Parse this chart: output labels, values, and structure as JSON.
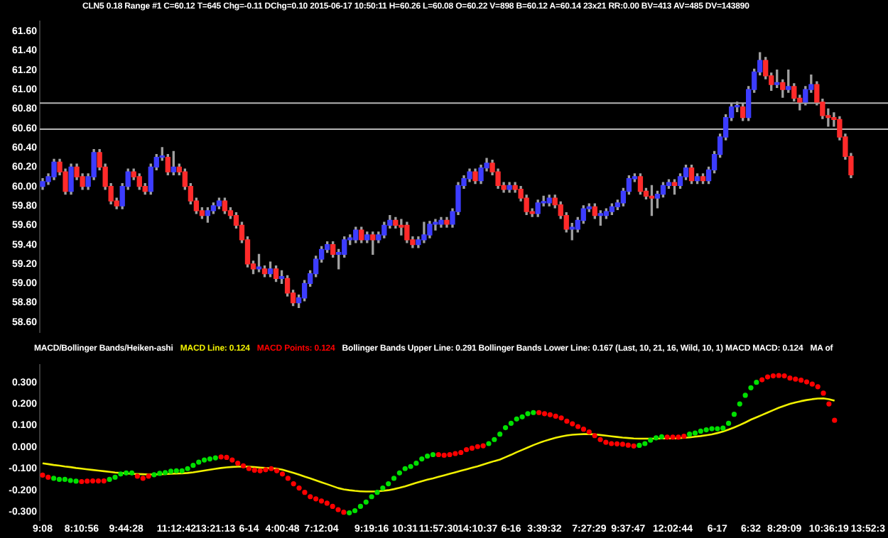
{
  "chart_data": [
    {
      "type": "candlestick",
      "title": "CLN5  0.18 Range  #1  C=60.12  T=645  Chg=-0.11  DChg=0.10  2015-06-17 10:50:11 H=60.26 L=60.08 O=60.22 V=898 B=60.12 A=60.14 23x21 RR:0.00 BV=413 AV=485 DV=143890",
      "categories": [
        null,
        null,
        null,
        null,
        null,
        null,
        null,
        null,
        null,
        null,
        null,
        null,
        null,
        null,
        null,
        null,
        null,
        null,
        null,
        null,
        null,
        null,
        null,
        null,
        null,
        null,
        null,
        null,
        null,
        null,
        null,
        null,
        null,
        null,
        null,
        null,
        null,
        null,
        null,
        null,
        null,
        null,
        null,
        null,
        null,
        null,
        null,
        null,
        null,
        null,
        null,
        null,
        null,
        null,
        null,
        null,
        null,
        null,
        null,
        null,
        null,
        null,
        null,
        null,
        null,
        null,
        null,
        null,
        null,
        null,
        null,
        null,
        null,
        null,
        null,
        null,
        null,
        null,
        null,
        null,
        null,
        null,
        null,
        null,
        null,
        null,
        null,
        null,
        null,
        null,
        null,
        null,
        null,
        null,
        null,
        null,
        null,
        null,
        null,
        null,
        null,
        null,
        null,
        null,
        null,
        null,
        null,
        null,
        null,
        null,
        null,
        null,
        null,
        null,
        null,
        null,
        null,
        null,
        null,
        null,
        null,
        null,
        null,
        null,
        null,
        null,
        null,
        null,
        null,
        null,
        null,
        null,
        null,
        null,
        null,
        null,
        null,
        null,
        null,
        null,
        null,
        null,
        null,
        null,
        null,
        null,
        null,
        null,
        null
      ],
      "ohlc": [
        [
          60.0,
          60.08,
          59.97,
          60.05
        ],
        [
          60.05,
          60.13,
          60.02,
          60.1
        ],
        [
          60.1,
          60.28,
          60.07,
          60.25
        ],
        [
          60.25,
          60.28,
          60.12,
          60.15
        ],
        [
          60.15,
          60.18,
          59.92,
          59.95
        ],
        [
          59.95,
          60.23,
          59.92,
          60.2
        ],
        [
          60.2,
          60.23,
          60.07,
          60.1
        ],
        [
          60.1,
          60.13,
          59.97,
          60.0
        ],
        [
          60.0,
          60.13,
          59.97,
          60.1
        ],
        [
          60.1,
          60.38,
          60.07,
          60.35
        ],
        [
          60.35,
          60.38,
          60.17,
          60.2
        ],
        [
          60.2,
          60.23,
          59.97,
          60.0
        ],
        [
          60.0,
          60.03,
          59.82,
          59.85
        ],
        [
          59.85,
          59.88,
          59.77,
          59.8
        ],
        [
          59.8,
          60.03,
          59.77,
          60.0
        ],
        [
          60.0,
          60.18,
          59.97,
          60.15
        ],
        [
          60.15,
          60.18,
          60.07,
          60.1
        ],
        [
          60.1,
          60.13,
          59.97,
          60.0
        ],
        [
          60.0,
          60.03,
          59.92,
          59.95
        ],
        [
          59.95,
          60.23,
          59.92,
          60.2
        ],
        [
          60.2,
          60.33,
          60.17,
          60.3
        ],
        [
          60.3,
          60.4,
          60.27,
          60.3
        ],
        [
          60.3,
          60.33,
          60.12,
          60.15
        ],
        [
          60.15,
          60.36,
          60.12,
          60.2
        ],
        [
          60.2,
          60.23,
          60.12,
          60.15
        ],
        [
          60.15,
          60.18,
          59.97,
          60.0
        ],
        [
          60.0,
          60.03,
          59.82,
          59.85
        ],
        [
          59.85,
          59.88,
          59.72,
          59.75
        ],
        [
          59.75,
          59.78,
          59.67,
          59.7
        ],
        [
          59.7,
          59.78,
          59.63,
          59.75
        ],
        [
          59.75,
          59.83,
          59.72,
          59.8
        ],
        [
          59.8,
          59.88,
          59.77,
          59.85
        ],
        [
          59.85,
          59.88,
          59.72,
          59.75
        ],
        [
          59.75,
          59.78,
          59.67,
          59.7
        ],
        [
          59.7,
          59.73,
          59.57,
          59.6
        ],
        [
          59.6,
          59.63,
          59.42,
          59.45
        ],
        [
          59.45,
          59.48,
          59.17,
          59.2
        ],
        [
          59.2,
          59.23,
          59.1,
          59.15
        ],
        [
          59.15,
          59.3,
          59.12,
          59.17
        ],
        [
          59.15,
          59.18,
          59.07,
          59.1
        ],
        [
          59.1,
          59.22,
          59.07,
          59.15
        ],
        [
          59.15,
          59.18,
          59.02,
          59.05
        ],
        [
          59.05,
          59.13,
          59.0,
          59.07
        ],
        [
          59.05,
          59.08,
          58.87,
          58.9
        ],
        [
          58.9,
          58.93,
          58.77,
          58.8
        ],
        [
          58.8,
          58.88,
          58.75,
          58.85
        ],
        [
          58.85,
          59.03,
          58.82,
          59.0
        ],
        [
          59.0,
          59.13,
          58.97,
          59.1
        ],
        [
          59.1,
          59.28,
          59.07,
          59.25
        ],
        [
          59.25,
          59.38,
          59.22,
          59.35
        ],
        [
          59.35,
          59.43,
          59.32,
          59.4
        ],
        [
          59.4,
          59.43,
          59.27,
          59.3
        ],
        [
          59.3,
          59.35,
          59.15,
          59.32
        ],
        [
          59.3,
          59.48,
          59.27,
          59.45
        ],
        [
          59.45,
          59.5,
          59.4,
          59.47
        ],
        [
          59.45,
          59.58,
          59.42,
          59.55
        ],
        [
          59.55,
          59.58,
          59.42,
          59.45
        ],
        [
          59.45,
          59.53,
          59.42,
          59.5
        ],
        [
          59.5,
          59.53,
          59.3,
          59.45
        ],
        [
          59.45,
          59.53,
          59.42,
          59.5
        ],
        [
          59.5,
          59.63,
          59.47,
          59.6
        ],
        [
          59.6,
          59.7,
          59.57,
          59.65
        ],
        [
          59.65,
          59.68,
          59.57,
          59.6
        ],
        [
          59.6,
          59.66,
          59.5,
          59.58
        ],
        [
          59.6,
          59.63,
          59.42,
          59.45
        ],
        [
          59.45,
          59.48,
          59.37,
          59.4
        ],
        [
          59.4,
          59.48,
          59.37,
          59.45
        ],
        [
          59.45,
          59.63,
          59.42,
          59.5
        ],
        [
          59.5,
          59.64,
          59.47,
          59.61
        ],
        [
          59.61,
          59.66,
          59.55,
          59.63
        ],
        [
          59.61,
          59.68,
          59.58,
          59.65
        ],
        [
          59.65,
          59.68,
          59.58,
          59.61
        ],
        [
          59.61,
          59.77,
          59.58,
          59.74
        ],
        [
          59.74,
          60.04,
          59.71,
          60.01
        ],
        [
          60.01,
          60.11,
          59.98,
          60.08
        ],
        [
          60.08,
          60.18,
          60.05,
          60.15
        ],
        [
          60.15,
          60.18,
          60.03,
          60.06
        ],
        [
          60.06,
          60.22,
          60.03,
          60.19
        ],
        [
          60.19,
          60.29,
          60.16,
          60.24
        ],
        [
          60.24,
          60.27,
          60.12,
          60.15
        ],
        [
          60.15,
          60.18,
          59.98,
          60.01
        ],
        [
          60.01,
          60.04,
          59.94,
          59.97
        ],
        [
          59.97,
          60.04,
          59.94,
          60.01
        ],
        [
          60.01,
          60.04,
          59.94,
          59.97
        ],
        [
          59.97,
          60.0,
          59.85,
          59.88
        ],
        [
          59.88,
          59.91,
          59.71,
          59.74
        ],
        [
          59.74,
          59.77,
          59.69,
          59.72
        ],
        [
          59.72,
          59.86,
          59.69,
          59.83
        ],
        [
          59.83,
          59.9,
          59.8,
          59.83
        ],
        [
          59.83,
          59.91,
          59.8,
          59.88
        ],
        [
          59.88,
          59.91,
          59.78,
          59.81
        ],
        [
          59.81,
          59.84,
          59.67,
          59.7
        ],
        [
          59.7,
          59.73,
          59.53,
          59.56
        ],
        [
          59.56,
          59.62,
          59.45,
          59.58
        ],
        [
          59.56,
          59.68,
          59.53,
          59.65
        ],
        [
          59.65,
          59.8,
          59.62,
          59.77
        ],
        [
          59.77,
          59.82,
          59.74,
          59.79
        ],
        [
          59.79,
          59.82,
          59.67,
          59.7
        ],
        [
          59.7,
          59.75,
          59.6,
          59.72
        ],
        [
          59.7,
          59.77,
          59.67,
          59.74
        ],
        [
          59.74,
          59.82,
          59.71,
          59.79
        ],
        [
          59.79,
          59.86,
          59.76,
          59.83
        ],
        [
          59.83,
          59.98,
          59.8,
          59.95
        ],
        [
          59.95,
          60.11,
          59.92,
          60.08
        ],
        [
          60.08,
          60.13,
          60.05,
          60.1
        ],
        [
          60.1,
          60.13,
          59.92,
          59.95
        ],
        [
          59.95,
          59.98,
          59.87,
          59.9
        ],
        [
          59.9,
          60.01,
          59.7,
          59.88
        ],
        [
          59.88,
          59.95,
          59.78,
          59.92
        ],
        [
          59.92,
          60.04,
          59.89,
          60.01
        ],
        [
          60.01,
          60.07,
          59.98,
          60.04
        ],
        [
          60.04,
          60.07,
          59.92,
          60.01
        ],
        [
          60.01,
          60.13,
          59.98,
          60.1
        ],
        [
          60.1,
          60.22,
          60.07,
          60.19
        ],
        [
          60.19,
          60.22,
          60.03,
          60.06
        ],
        [
          60.06,
          60.13,
          60.03,
          60.1
        ],
        [
          60.1,
          60.13,
          60.03,
          60.06
        ],
        [
          60.06,
          60.2,
          60.03,
          60.17
        ],
        [
          60.17,
          60.36,
          60.14,
          60.33
        ],
        [
          60.33,
          60.54,
          60.3,
          60.51
        ],
        [
          60.51,
          60.74,
          60.48,
          60.71
        ],
        [
          60.71,
          60.85,
          60.68,
          60.82
        ],
        [
          60.82,
          60.87,
          60.77,
          60.82
        ],
        [
          60.82,
          60.85,
          60.68,
          60.71
        ],
        [
          60.71,
          61.03,
          60.68,
          61.0
        ],
        [
          61.0,
          61.21,
          60.97,
          61.18
        ],
        [
          61.18,
          61.38,
          61.15,
          61.3
        ],
        [
          61.3,
          61.33,
          61.11,
          61.14
        ],
        [
          61.14,
          61.17,
          60.99,
          61.05
        ],
        [
          61.05,
          61.2,
          61.02,
          61.07
        ],
        [
          61.07,
          61.1,
          60.92,
          61.0
        ],
        [
          61.0,
          61.2,
          60.97,
          61.03
        ],
        [
          61.03,
          61.06,
          60.88,
          60.91
        ],
        [
          60.91,
          60.94,
          60.79,
          60.87
        ],
        [
          60.87,
          61.03,
          60.84,
          61.0
        ],
        [
          61.0,
          61.15,
          60.97,
          61.05
        ],
        [
          61.05,
          61.08,
          60.84,
          60.87
        ],
        [
          60.87,
          60.9,
          60.7,
          60.73
        ],
        [
          60.73,
          60.8,
          60.62,
          60.71
        ],
        [
          60.71,
          60.76,
          60.62,
          60.69
        ],
        [
          60.69,
          60.72,
          60.48,
          60.51
        ],
        [
          60.51,
          60.54,
          60.28,
          60.31
        ],
        [
          60.31,
          60.34,
          60.09,
          60.12
        ],
        null,
        null,
        null,
        null,
        null,
        null
      ],
      "ylim": [
        58.5,
        61.7
      ],
      "yticks": [
        {
          "value": 58.6,
          "label": "58.60"
        },
        {
          "value": 58.8,
          "label": "58.80"
        },
        {
          "value": 59,
          "label": "59.00"
        },
        {
          "value": 59.2,
          "label": "59.20"
        },
        {
          "value": 59.4,
          "label": "59.40"
        },
        {
          "value": 59.6,
          "label": "59.60"
        },
        {
          "value": 59.8,
          "label": "59.80"
        },
        {
          "value": 60,
          "label": "60.00"
        },
        {
          "value": 60.2,
          "label": "60.20"
        },
        {
          "value": 60.4,
          "label": "60.40"
        },
        {
          "value": 60.6,
          "label": "60.60"
        },
        {
          "value": 60.8,
          "label": "60.80"
        },
        {
          "value": 61,
          "label": "61.00"
        },
        {
          "value": 61.2,
          "label": "61.20"
        },
        {
          "value": 61.4,
          "label": "61.40"
        },
        {
          "value": 61.6,
          "label": "61.60"
        }
      ],
      "ref_lines": [
        {
          "axis": "y",
          "value": 60.86,
          "color": "#b4b4b4"
        },
        {
          "axis": "y",
          "value": 60.59,
          "color": "#b4b4b4"
        }
      ],
      "tick_labels": "y"
    },
    {
      "type": "scatter",
      "title": "MACD/Bollinger Bands/Heiken-ashi",
      "categories": [
        "9:08",
        null,
        null,
        null,
        null,
        null,
        null,
        "8:10:56",
        null,
        null,
        null,
        null,
        null,
        null,
        null,
        "9:44:28",
        null,
        null,
        null,
        null,
        null,
        null,
        null,
        null,
        "11:12:42",
        null,
        null,
        null,
        null,
        null,
        null,
        "13:21:13",
        null,
        null,
        null,
        null,
        null,
        "6-14",
        null,
        null,
        null,
        null,
        null,
        "4:00:48",
        null,
        null,
        null,
        null,
        null,
        null,
        "7:12:04",
        null,
        null,
        null,
        null,
        null,
        null,
        null,
        null,
        "9:19:16",
        null,
        null,
        null,
        null,
        null,
        "10:31",
        null,
        null,
        null,
        null,
        null,
        "11:57:30",
        null,
        null,
        null,
        null,
        null,
        null,
        "14:10:37",
        null,
        null,
        null,
        null,
        null,
        "6-16",
        null,
        null,
        null,
        null,
        null,
        "3:39:32",
        null,
        null,
        null,
        null,
        null,
        null,
        null,
        "7:27:29",
        null,
        null,
        null,
        null,
        null,
        null,
        "9:37:47",
        null,
        null,
        null,
        null,
        null,
        null,
        null,
        "12:02:44",
        null,
        null,
        null,
        null,
        null,
        null,
        null,
        "6-17",
        null,
        null,
        null,
        null,
        null,
        "6:32",
        null,
        null,
        null,
        null,
        null,
        "8:29:09",
        null,
        null,
        null,
        null,
        null,
        null,
        null,
        "10:36:19",
        null,
        null,
        null,
        null,
        null,
        null,
        "13:52:3"
      ],
      "series": [
        {
          "name": "MACD Line: 0.124",
          "type": "line",
          "color": "#f0f000",
          "marker": "none",
          "values": [
            -0.075,
            -0.079,
            -0.083,
            -0.086,
            -0.09,
            -0.093,
            -0.097,
            -0.1,
            -0.103,
            -0.106,
            -0.109,
            -0.112,
            -0.115,
            -0.118,
            -0.12,
            -0.122,
            -0.124,
            -0.125,
            -0.126,
            -0.127,
            -0.127,
            -0.126,
            -0.125,
            -0.124,
            -0.123,
            -0.122,
            -0.12,
            -0.117,
            -0.113,
            -0.109,
            -0.105,
            -0.101,
            -0.097,
            -0.094,
            -0.092,
            -0.091,
            -0.09,
            -0.091,
            -0.093,
            -0.095,
            -0.097,
            -0.098,
            -0.1,
            -0.105,
            -0.112,
            -0.12,
            -0.128,
            -0.137,
            -0.145,
            -0.154,
            -0.163,
            -0.172,
            -0.181,
            -0.19,
            -0.196,
            -0.2,
            -0.203,
            -0.205,
            -0.206,
            -0.206,
            -0.205,
            -0.203,
            -0.2,
            -0.195,
            -0.189,
            -0.182,
            -0.174,
            -0.166,
            -0.158,
            -0.151,
            -0.145,
            -0.138,
            -0.131,
            -0.124,
            -0.117,
            -0.11,
            -0.103,
            -0.096,
            -0.089,
            -0.081,
            -0.073,
            -0.065,
            -0.058,
            -0.047,
            -0.036,
            -0.024,
            -0.013,
            -0.002,
            0.009,
            0.019,
            0.028,
            0.036,
            0.043,
            0.049,
            0.054,
            0.057,
            0.059,
            0.06,
            0.06,
            0.059,
            0.056,
            0.053,
            0.05,
            0.047,
            0.044,
            0.042,
            0.04,
            0.039,
            0.039,
            0.039,
            0.039,
            0.04,
            0.04,
            0.04,
            0.041,
            0.043,
            0.045,
            0.048,
            0.051,
            0.055,
            0.059,
            0.065,
            0.072,
            0.081,
            0.091,
            0.102,
            0.114,
            0.127,
            0.138,
            0.149,
            0.16,
            0.171,
            0.182,
            0.191,
            0.2,
            0.207,
            0.213,
            0.218,
            0.222,
            0.225,
            0.226,
            0.222,
            0.215,
            null,
            null,
            null,
            null,
            null,
            null
          ]
        },
        {
          "name": "MACD Points: 0.124",
          "color": "#ff0000",
          "marker": "circle",
          "values": [
            -0.13,
            -0.14,
            -0.145,
            -0.15,
            -0.15,
            -0.155,
            -0.158,
            -0.16,
            -0.158,
            -0.157,
            -0.157,
            -0.157,
            -0.15,
            -0.14,
            -0.125,
            -0.12,
            -0.12,
            -0.135,
            -0.145,
            -0.135,
            -0.128,
            -0.122,
            -0.118,
            -0.112,
            -0.11,
            -0.11,
            -0.1,
            -0.085,
            -0.07,
            -0.06,
            -0.055,
            -0.05,
            -0.046,
            -0.048,
            -0.06,
            -0.075,
            -0.087,
            -0.1,
            -0.107,
            -0.11,
            -0.105,
            -0.1,
            -0.11,
            -0.125,
            -0.145,
            -0.17,
            -0.19,
            -0.21,
            -0.23,
            -0.24,
            -0.25,
            -0.26,
            -0.275,
            -0.29,
            -0.302,
            -0.305,
            -0.295,
            -0.275,
            -0.255,
            -0.23,
            -0.21,
            -0.19,
            -0.17,
            -0.145,
            -0.12,
            -0.1,
            -0.09,
            -0.075,
            -0.055,
            -0.042,
            -0.035,
            -0.035,
            -0.038,
            -0.035,
            -0.03,
            -0.025,
            -0.012,
            -0.005,
            0.002,
            0.006,
            0.016,
            0.035,
            0.06,
            0.09,
            0.11,
            0.13,
            0.14,
            0.155,
            0.16,
            0.16,
            0.155,
            0.15,
            0.143,
            0.135,
            0.12,
            0.108,
            0.095,
            0.083,
            0.07,
            0.053,
            0.035,
            0.022,
            0.016,
            0.015,
            0.013,
            0.009,
            0.005,
            0.008,
            0.016,
            0.032,
            0.043,
            0.048,
            0.046,
            0.046,
            0.046,
            0.05,
            0.06,
            0.065,
            0.074,
            0.08,
            0.085,
            0.085,
            0.088,
            0.11,
            0.152,
            0.2,
            0.24,
            0.275,
            0.3,
            0.312,
            0.325,
            0.33,
            0.332,
            0.33,
            0.32,
            0.315,
            0.31,
            0.302,
            0.292,
            0.28,
            0.25,
            0.2,
            0.124,
            null,
            null,
            null,
            null,
            null,
            null
          ],
          "colors": [
            "#ff0000",
            "#ff0000",
            "#00e000",
            "#00e000",
            "#00e000",
            "#00e000",
            "#00e000",
            "#ff0000",
            "#ff0000",
            "#ff0000",
            "#ff0000",
            "#ff0000",
            "#00e000",
            "#00e000",
            "#00e000",
            "#00e000",
            "#00e000",
            "#ff0000",
            "#ff0000",
            "#ff0000",
            "#00e000",
            "#00e000",
            "#00e000",
            "#00e000",
            "#00e000",
            "#00e000",
            "#00e000",
            "#00e000",
            "#00e000",
            "#00e000",
            "#00e000",
            "#00e000",
            "#ff0000",
            "#ff0000",
            "#ff0000",
            "#ff0000",
            "#ff0000",
            "#ff0000",
            "#ff0000",
            "#ff0000",
            "#ff0000",
            "#ff0000",
            "#ff0000",
            "#ff0000",
            "#ff0000",
            "#ff0000",
            "#ff0000",
            "#ff0000",
            "#ff0000",
            "#ff0000",
            "#ff0000",
            "#ff0000",
            "#ff0000",
            "#ff0000",
            "#ff0000",
            "#00e000",
            "#00e000",
            "#00e000",
            "#00e000",
            "#00e000",
            "#00e000",
            "#00e000",
            "#00e000",
            "#00e000",
            "#00e000",
            "#00e000",
            "#00e000",
            "#00e000",
            "#00e000",
            "#00e000",
            "#00e000",
            "#ff0000",
            "#ff0000",
            "#ff0000",
            "#ff0000",
            "#ff0000",
            "#ff0000",
            "#ff0000",
            "#ff0000",
            "#ff0000",
            "#00e000",
            "#00e000",
            "#00e000",
            "#00e000",
            "#00e000",
            "#00e000",
            "#00e000",
            "#00e000",
            "#00e000",
            "#ff0000",
            "#ff0000",
            "#ff0000",
            "#ff0000",
            "#ff0000",
            "#ff0000",
            "#ff0000",
            "#ff0000",
            "#ff0000",
            "#ff0000",
            "#ff0000",
            "#ff0000",
            "#ff0000",
            "#ff0000",
            "#ff0000",
            "#ff0000",
            "#ff0000",
            "#ff0000",
            "#00e000",
            "#00e000",
            "#00e000",
            "#00e000",
            "#00e000",
            "#ff0000",
            "#ff0000",
            "#ff0000",
            "#ff0000",
            "#00e000",
            "#00e000",
            "#00e000",
            "#00e000",
            "#00e000",
            "#00e000",
            "#00e000",
            "#00e000",
            "#00e000",
            "#00e000",
            "#00e000",
            "#00e000",
            "#00e000",
            "#ff0000",
            "#ff0000",
            "#ff0000",
            "#ff0000",
            "#ff0000",
            "#ff0000",
            "#ff0000",
            "#ff0000",
            "#ff0000",
            "#ff0000",
            "#ff0000",
            "#ff0000",
            "#ff0000",
            "#ff0000",
            null,
            null,
            null,
            null,
            null,
            null
          ]
        }
      ],
      "ylim": [
        -0.34,
        0.38
      ],
      "yticks": [
        {
          "value": -0.3,
          "label": "-0.300"
        },
        {
          "value": -0.2,
          "label": "-0.200"
        },
        {
          "value": -0.1,
          "label": "-0.100"
        },
        {
          "value": 0,
          "label": "0.000"
        },
        {
          "value": 0.1,
          "label": "0.100"
        },
        {
          "value": 0.2,
          "label": "0.200"
        },
        {
          "value": 0.3,
          "label": "0.300"
        }
      ],
      "legend": "top left",
      "annotations": [
        "Bollinger Bands Upper Line: 0.291  Bollinger Bands Lower Line: 0.167  (Last, 10, 21, 16, Wild, 10, 1) MACD  MACD: 0.124",
        "MA of"
      ]
    }
  ]
}
